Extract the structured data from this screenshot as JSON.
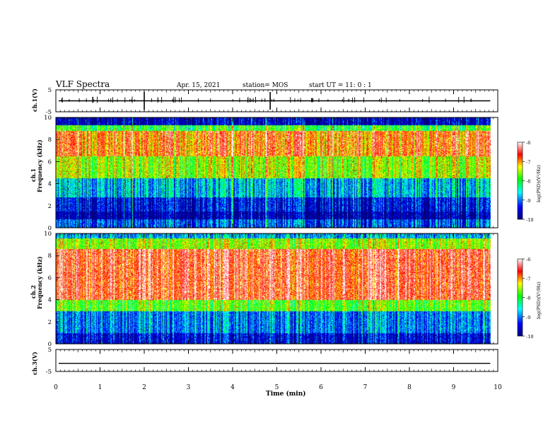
{
  "header": {
    "title": "VLF Spectra",
    "date": "Apr. 15, 2021",
    "station": "station= MOS",
    "start_ut": "start  UT =   11: 0  : 1"
  },
  "chart_data": {
    "type": "heatmap",
    "x_axis": {
      "label": "Time  (min)",
      "range": [
        0,
        10
      ],
      "ticks": [
        "0",
        "1",
        "2",
        "3",
        "4",
        "5",
        "6",
        "7",
        "8",
        "9",
        "10"
      ],
      "data_end_min": 9.83
    },
    "panels": [
      {
        "id": "ch1-voltage",
        "kind": "waveform",
        "ylabel": "ch.1(V)",
        "ylim": [
          -5,
          5
        ],
        "ticks": [
          "5",
          "-5"
        ],
        "level": 0
      },
      {
        "id": "ch1-spectrogram",
        "kind": "spectrogram",
        "ylabel_top": "ch.1",
        "ylabel": "Frequency (kHz)",
        "ylim": [
          0,
          10
        ],
        "ticks": [
          "0",
          "2",
          "4",
          "6",
          "8",
          "10"
        ],
        "colorbar": {
          "label": "log(PSD)(V²/Hz)",
          "range": [
            -10,
            -6
          ],
          "ticks": [
            "-6",
            "-7",
            "-8",
            "-9",
            "-10"
          ]
        }
      },
      {
        "id": "ch2-spectrogram",
        "kind": "spectrogram",
        "ylabel_top": "ch.2",
        "ylabel": "Frequency (kHz)",
        "ylim": [
          0,
          10
        ],
        "ticks": [
          "0",
          "2",
          "4",
          "6",
          "8",
          "10"
        ],
        "colorbar": {
          "label": "log(PSD)(V²/Hz)",
          "range": [
            -10,
            -6
          ],
          "ticks": [
            "-6",
            "-7",
            "-8",
            "-9",
            "-10"
          ]
        }
      },
      {
        "id": "ch3-voltage",
        "kind": "waveform",
        "ylabel": "ch.3(V)",
        "ylim": [
          -5,
          5
        ],
        "ticks": [
          "5",
          "-5"
        ],
        "level": -1.3
      }
    ],
    "colormap": [
      "#000080",
      "#0000ff",
      "#00ffff",
      "#00ff00",
      "#ffff00",
      "#ff0000",
      "#ffffff"
    ],
    "grid": false,
    "legend": "colorbar-right"
  }
}
